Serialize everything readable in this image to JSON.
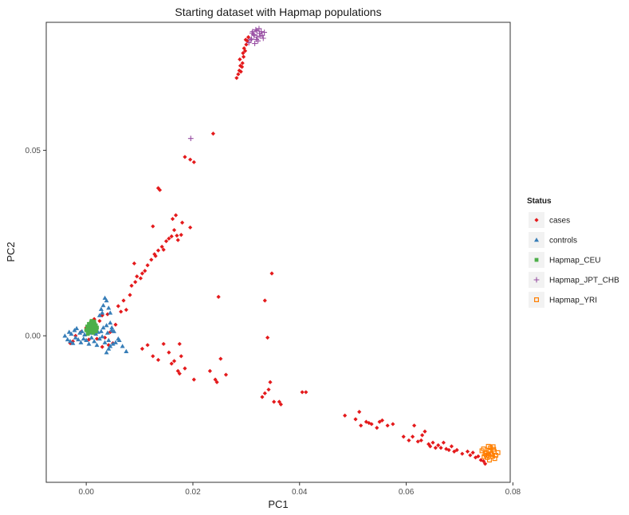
{
  "chart_data": {
    "type": "scatter",
    "title": "Starting dataset with Hapmap populations",
    "xlabel": "PC1",
    "ylabel": "PC2",
    "xlim": [
      -0.0075,
      0.0795
    ],
    "ylim": [
      -0.0395,
      0.0845
    ],
    "x_ticks": [
      0.0,
      0.02,
      0.04,
      0.06,
      0.08
    ],
    "x_tick_labels": [
      "0.00",
      "0.02",
      "0.04",
      "0.06",
      "0.08"
    ],
    "y_ticks": [
      0.0,
      0.05
    ],
    "y_tick_labels": [
      "0.00",
      "0.05"
    ],
    "grid": false,
    "legend": {
      "title": "Status",
      "position": "right",
      "entries": [
        {
          "label": "cases",
          "color": "#e41a1c",
          "shape": "diamond"
        },
        {
          "label": "controls",
          "color": "#377eb8",
          "shape": "triangle"
        },
        {
          "label": "Hapmap_CEU",
          "color": "#4daf4a",
          "shape": "square"
        },
        {
          "label": "Hapmap_JPT_CHB",
          "color": "#984ea3",
          "shape": "plus"
        },
        {
          "label": "Hapmap_YRI",
          "color": "#ff7f00",
          "shape": "square-open"
        }
      ]
    },
    "series": [
      {
        "name": "cases",
        "points": [
          [
            -0.002,
            0.0
          ],
          [
            -0.0025,
            -0.0015
          ],
          [
            -0.001,
            0.001
          ],
          [
            -0.003,
            -0.002
          ],
          [
            0.0,
            0.0022
          ],
          [
            0.001,
            0.003
          ],
          [
            0.0015,
            0.0045
          ],
          [
            0.0025,
            0.004
          ],
          [
            0.003,
            0.0055
          ],
          [
            0.004,
            0.0058
          ],
          [
            0.0005,
            -0.001
          ],
          [
            0.002,
            -0.0008
          ],
          [
            0.0035,
            -0.0005
          ],
          [
            0.0045,
            0.001
          ],
          [
            0.0042,
            -0.0025
          ],
          [
            0.003,
            -0.003
          ],
          [
            0.005,
            -0.002
          ],
          [
            0.0055,
            0.003
          ],
          [
            0.006,
            0.008
          ],
          [
            0.007,
            0.0095
          ],
          [
            0.0065,
            0.0065
          ],
          [
            0.0075,
            0.007
          ],
          [
            0.0082,
            0.011
          ],
          [
            0.0085,
            0.0135
          ],
          [
            0.0092,
            0.0145
          ],
          [
            0.0095,
            0.016
          ],
          [
            0.0102,
            0.0155
          ],
          [
            0.0105,
            0.0168
          ],
          [
            0.011,
            0.0175
          ],
          [
            0.0115,
            0.019
          ],
          [
            0.0122,
            0.0205
          ],
          [
            0.0128,
            0.022
          ],
          [
            0.013,
            0.0215
          ],
          [
            0.0135,
            0.023
          ],
          [
            0.0142,
            0.024
          ],
          [
            0.0145,
            0.0232
          ],
          [
            0.015,
            0.0255
          ],
          [
            0.0155,
            0.0262
          ],
          [
            0.016,
            0.0268
          ],
          [
            0.0165,
            0.0285
          ],
          [
            0.017,
            0.027
          ],
          [
            0.0172,
            0.0258
          ],
          [
            0.0178,
            0.0272
          ],
          [
            0.0162,
            0.0315
          ],
          [
            0.0168,
            0.0325
          ],
          [
            0.018,
            0.0305
          ],
          [
            0.0195,
            0.0292
          ],
          [
            0.0125,
            0.0295
          ],
          [
            0.0135,
            0.0398
          ],
          [
            0.0138,
            0.0393
          ],
          [
            0.0185,
            0.0482
          ],
          [
            0.0195,
            0.0475
          ],
          [
            0.0202,
            0.0468
          ],
          [
            0.0238,
            0.0545
          ],
          [
            0.009,
            0.0195
          ],
          [
            0.0115,
            -0.0025
          ],
          [
            0.0105,
            -0.0035
          ],
          [
            0.0125,
            -0.0055
          ],
          [
            0.0135,
            -0.0065
          ],
          [
            0.0145,
            -0.0022
          ],
          [
            0.0155,
            -0.0045
          ],
          [
            0.016,
            -0.0075
          ],
          [
            0.0165,
            -0.0068
          ],
          [
            0.0172,
            -0.0095
          ],
          [
            0.0175,
            -0.0102
          ],
          [
            0.0178,
            -0.0055
          ],
          [
            0.0185,
            -0.0088
          ],
          [
            0.0175,
            -0.0022
          ],
          [
            0.0202,
            -0.0118
          ],
          [
            0.0242,
            -0.0118
          ],
          [
            0.0245,
            -0.0125
          ],
          [
            0.0248,
            0.0105
          ],
          [
            0.0232,
            -0.0095
          ],
          [
            0.0262,
            -0.0105
          ],
          [
            0.0252,
            -0.0062
          ],
          [
            0.0348,
            0.0168
          ],
          [
            0.0335,
            0.0095
          ],
          [
            0.034,
            -0.0005
          ],
          [
            0.0345,
            -0.0125
          ],
          [
            0.033,
            -0.0165
          ],
          [
            0.0335,
            -0.0155
          ],
          [
            0.0342,
            -0.0145
          ],
          [
            0.0352,
            -0.0178
          ],
          [
            0.0362,
            -0.0178
          ],
          [
            0.0365,
            -0.0185
          ],
          [
            0.0405,
            -0.0152
          ],
          [
            0.0412,
            -0.0152
          ],
          [
            0.0485,
            -0.0215
          ],
          [
            0.0505,
            -0.0225
          ],
          [
            0.0512,
            -0.0205
          ],
          [
            0.0515,
            -0.0242
          ],
          [
            0.0525,
            -0.0232
          ],
          [
            0.053,
            -0.0235
          ],
          [
            0.0535,
            -0.0238
          ],
          [
            0.0545,
            -0.0248
          ],
          [
            0.055,
            -0.0232
          ],
          [
            0.0555,
            -0.0228
          ],
          [
            0.0565,
            -0.0242
          ],
          [
            0.0575,
            -0.0238
          ],
          [
            0.0595,
            -0.0272
          ],
          [
            0.0605,
            -0.0282
          ],
          [
            0.0612,
            -0.0272
          ],
          [
            0.0615,
            -0.0242
          ],
          [
            0.0622,
            -0.0285
          ],
          [
            0.0628,
            -0.0282
          ],
          [
            0.063,
            -0.0268
          ],
          [
            0.0635,
            -0.0258
          ],
          [
            0.0642,
            -0.0292
          ],
          [
            0.0645,
            -0.0298
          ],
          [
            0.065,
            -0.0288
          ],
          [
            0.0655,
            -0.0302
          ],
          [
            0.066,
            -0.0295
          ],
          [
            0.0665,
            -0.0302
          ],
          [
            0.067,
            -0.0288
          ],
          [
            0.0675,
            -0.0305
          ],
          [
            0.068,
            -0.0308
          ],
          [
            0.0685,
            -0.0298
          ],
          [
            0.069,
            -0.0312
          ],
          [
            0.0695,
            -0.0308
          ],
          [
            0.0705,
            -0.0318
          ],
          [
            0.0715,
            -0.0312
          ],
          [
            0.072,
            -0.0322
          ],
          [
            0.0725,
            -0.0315
          ],
          [
            0.073,
            -0.0328
          ],
          [
            0.0735,
            -0.0325
          ],
          [
            0.074,
            -0.0335
          ],
          [
            0.0745,
            -0.0338
          ],
          [
            0.075,
            -0.0322
          ],
          [
            0.0748,
            -0.0345
          ],
          [
            0.0755,
            -0.0318
          ],
          [
            0.0282,
            0.0695
          ],
          [
            0.0285,
            0.0705
          ],
          [
            0.029,
            0.0712
          ],
          [
            0.0292,
            0.0725
          ],
          [
            0.0288,
            0.0745
          ],
          [
            0.0295,
            0.0752
          ],
          [
            0.0298,
            0.0768
          ],
          [
            0.03,
            0.0785
          ],
          [
            0.0302,
            0.0795
          ],
          [
            0.0296,
            0.0775
          ],
          [
            0.0293,
            0.0735
          ],
          [
            0.0287,
            0.0715
          ],
          [
            0.0289,
            0.0728
          ],
          [
            0.0299,
            0.0798
          ],
          [
            0.0304,
            0.0805
          ],
          [
            0.0294,
            0.0762
          ]
        ]
      },
      {
        "name": "controls",
        "points": [
          [
            -0.004,
            0.0
          ],
          [
            -0.0035,
            -0.001
          ],
          [
            -0.0032,
            0.001
          ],
          [
            -0.003,
            -0.0015
          ],
          [
            -0.0028,
            0.0005
          ],
          [
            -0.0025,
            -0.002
          ],
          [
            -0.0022,
            0.0015
          ],
          [
            -0.002,
            -0.0005
          ],
          [
            -0.0018,
            0.002
          ],
          [
            -0.0015,
            -0.001
          ],
          [
            -0.0012,
            0.0008
          ],
          [
            -0.001,
            -0.0018
          ],
          [
            -0.0008,
            0.0012
          ],
          [
            -0.0005,
            -0.0008
          ],
          [
            -0.0003,
            0.0003
          ],
          [
            0.0,
            -0.0012
          ],
          [
            0.0002,
            0.0018
          ],
          [
            0.0005,
            -0.0022
          ],
          [
            0.0008,
            0.0008
          ],
          [
            0.001,
            -0.0005
          ],
          [
            0.0012,
            0.0015
          ],
          [
            0.0015,
            -0.0015
          ],
          [
            0.0018,
            0.0005
          ],
          [
            0.002,
            -0.0025
          ],
          [
            0.0022,
            0.001
          ],
          [
            0.0025,
            -0.0008
          ],
          [
            0.0028,
            0.0012
          ],
          [
            0.003,
            -0.0002
          ],
          [
            0.0032,
            0.0022
          ],
          [
            0.0035,
            -0.0018
          ],
          [
            0.0038,
            0.0028
          ],
          [
            0.004,
            0.0008
          ],
          [
            0.0042,
            -0.0012
          ],
          [
            0.0045,
            0.0035
          ],
          [
            0.0048,
            0.0015
          ],
          [
            0.005,
            -0.0022
          ],
          [
            0.003,
            0.0062
          ],
          [
            0.0032,
            0.0082
          ],
          [
            0.0035,
            0.0102
          ],
          [
            0.0038,
            0.0095
          ],
          [
            0.0042,
            0.0075
          ],
          [
            0.0028,
            0.0072
          ],
          [
            0.0025,
            0.0055
          ],
          [
            0.0045,
            0.0062
          ],
          [
            0.0055,
            -0.0018
          ],
          [
            0.0062,
            -0.0012
          ],
          [
            0.0068,
            -0.0028
          ],
          [
            0.0075,
            -0.0042
          ],
          [
            0.006,
            -0.0008
          ],
          [
            0.0042,
            -0.0035
          ],
          [
            0.0038,
            -0.0045
          ],
          [
            0.0048,
            0.0022
          ],
          [
            0.0052,
            0.0012
          ],
          [
            0.0045,
            -0.0028
          ]
        ]
      },
      {
        "name": "Hapmap_CEU",
        "points": [
          [
            0.0,
            0.0015
          ],
          [
            0.0002,
            0.0025
          ],
          [
            0.0005,
            0.001
          ],
          [
            0.0008,
            0.003
          ],
          [
            0.001,
            0.002
          ],
          [
            0.0012,
            0.0035
          ],
          [
            0.0015,
            0.0015
          ],
          [
            0.0018,
            0.0028
          ],
          [
            0.002,
            0.0022
          ],
          [
            0.0005,
            0.0032
          ],
          [
            0.001,
            0.004
          ],
          [
            0.0015,
            0.0038
          ],
          [
            0.0003,
            0.0005
          ],
          [
            0.0008,
            0.0012
          ],
          [
            0.0013,
            0.0008
          ],
          [
            0.0018,
            0.0012
          ],
          [
            0.0007,
            0.0022
          ],
          [
            0.0011,
            0.0027
          ],
          [
            0.0016,
            0.0031
          ],
          [
            0.0004,
            0.0018
          ],
          [
            0.0009,
            0.0036
          ],
          [
            0.0014,
            0.0024
          ],
          [
            0.0019,
            0.0019
          ],
          [
            0.0006,
            0.0028
          ]
        ]
      },
      {
        "name": "Hapmap_JPT_CHB",
        "points": [
          [
            0.0305,
            0.079
          ],
          [
            0.031,
            0.08
          ],
          [
            0.0315,
            0.081
          ],
          [
            0.032,
            0.0805
          ],
          [
            0.0325,
            0.0815
          ],
          [
            0.033,
            0.081
          ],
          [
            0.0312,
            0.082
          ],
          [
            0.0318,
            0.0825
          ],
          [
            0.0322,
            0.0795
          ],
          [
            0.0328,
            0.082
          ],
          [
            0.0308,
            0.0798
          ],
          [
            0.0316,
            0.0788
          ],
          [
            0.0324,
            0.0828
          ],
          [
            0.0332,
            0.0802
          ],
          [
            0.0314,
            0.0812
          ],
          [
            0.032,
            0.0822
          ],
          [
            0.0326,
            0.0808
          ],
          [
            0.0311,
            0.0816
          ],
          [
            0.0319,
            0.0799
          ],
          [
            0.0334,
            0.0818
          ],
          [
            0.0196,
            0.0532
          ]
        ]
      },
      {
        "name": "Hapmap_YRI",
        "points": [
          [
            0.0745,
            -0.0305
          ],
          [
            0.075,
            -0.0315
          ],
          [
            0.0755,
            -0.031
          ],
          [
            0.076,
            -0.032
          ],
          [
            0.0765,
            -0.0312
          ],
          [
            0.0752,
            -0.0328
          ],
          [
            0.0758,
            -0.0302
          ],
          [
            0.0762,
            -0.0325
          ],
          [
            0.0748,
            -0.0318
          ],
          [
            0.0768,
            -0.0322
          ],
          [
            0.0756,
            -0.0335
          ],
          [
            0.0764,
            -0.0306
          ],
          [
            0.0742,
            -0.031
          ],
          [
            0.0754,
            -0.0298
          ],
          [
            0.0766,
            -0.0331
          ],
          [
            0.075,
            -0.0322
          ],
          [
            0.0772,
            -0.0315
          ],
          [
            0.0746,
            -0.0326
          ],
          [
            0.0759,
            -0.0318
          ],
          [
            0.0763,
            -0.0299
          ]
        ]
      }
    ]
  }
}
